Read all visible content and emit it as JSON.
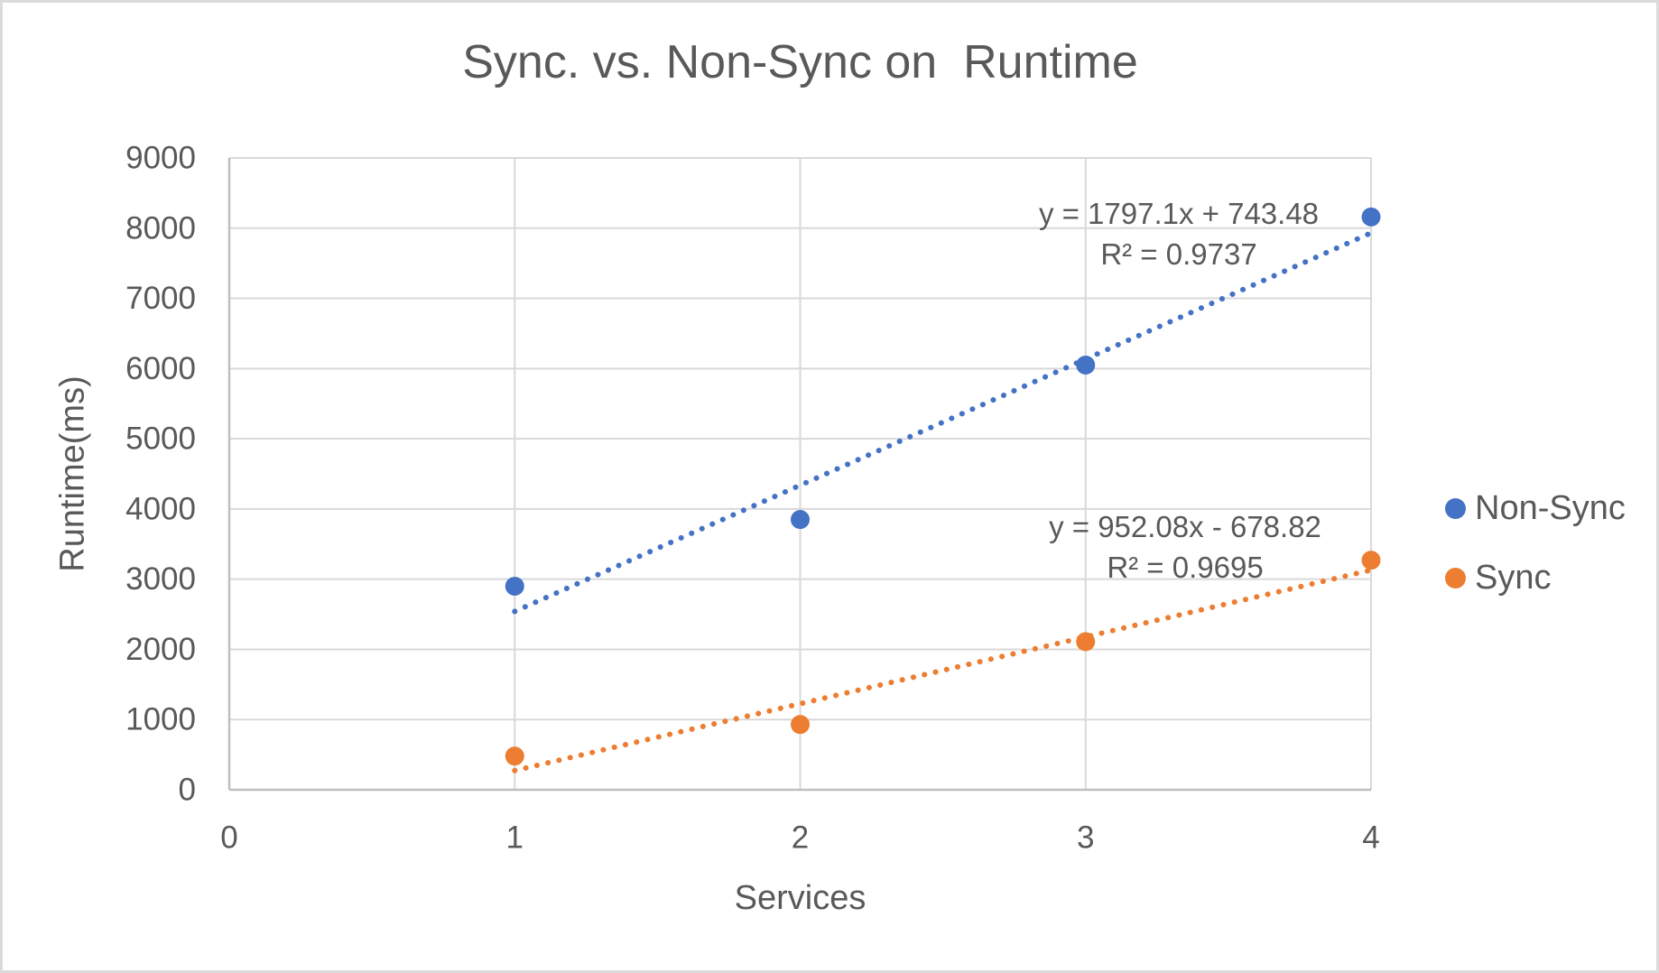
{
  "window": {
    "background": "#FFFFFF",
    "border_color": "#DBDBDB"
  },
  "chart_data": {
    "type": "scatter",
    "title": "Sync. vs. Non-Sync on  Runtime",
    "xlabel": "Services",
    "ylabel": "Runtime(ms)",
    "xlim": [
      0,
      4
    ],
    "ylim": [
      0,
      9000
    ],
    "x_ticks": [
      0,
      1,
      2,
      3,
      4
    ],
    "y_ticks": [
      0,
      1000,
      2000,
      3000,
      4000,
      5000,
      6000,
      7000,
      8000,
      9000
    ],
    "grid": true,
    "legend_position": "right",
    "text_color": "#595959",
    "gridline_color": "#D9D9D9",
    "axis_line_color": "#BFBFBF",
    "x": [
      1,
      2,
      3,
      4
    ],
    "series": [
      {
        "name": "Non-Sync",
        "color": "#4472C4",
        "values": [
          2900,
          3850,
          6050,
          8160
        ],
        "trendline": {
          "style": "dotted",
          "slope": 1797.1,
          "intercept": 743.48,
          "equation_label": "y = 1797.1x + 743.48",
          "r2_label": "R² = 0.9737"
        }
      },
      {
        "name": "Sync",
        "color": "#ED7D31",
        "values": [
          480,
          930,
          2110,
          3270
        ],
        "trendline": {
          "style": "dotted",
          "slope": 952.08,
          "intercept": -678.82,
          "equation_label": "y = 952.08x - 678.82",
          "r2_label": "R² = 0.9695"
        }
      }
    ]
  }
}
